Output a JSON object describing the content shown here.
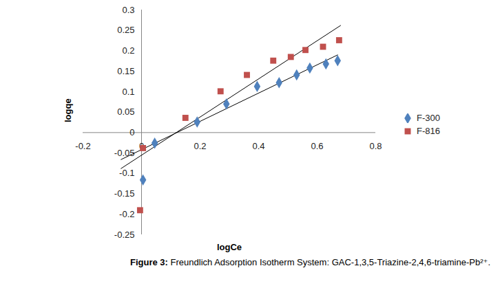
{
  "chart_data": {
    "type": "scatter",
    "title": "Figure 3: Freundlich Adsorption Isotherm System: GAC-1,3,5-Triazine-2,4,6-triamine-Pb²⁺.",
    "x_label": "logCe",
    "y_label": "logqe",
    "xlim": [
      -0.2,
      0.8
    ],
    "xticks": [
      -0.2,
      0,
      0.2,
      0.4,
      0.6,
      0.8
    ],
    "ylim": [
      -0.25,
      0.3
    ],
    "yticks": [
      -0.25,
      -0.2,
      -0.15,
      -0.1,
      -0.05,
      0,
      0.05,
      0.1,
      0.15,
      0.2,
      0.25,
      0.3
    ],
    "grid": false,
    "legend": "right",
    "series": [
      {
        "name": "F-300",
        "color": "#4F81BD",
        "marker": "diamond",
        "x": [
          0.005,
          0.045,
          0.19,
          0.29,
          0.395,
          0.47,
          0.53,
          0.575,
          0.63,
          0.67
        ],
        "values": [
          -0.116,
          -0.026,
          0.026,
          0.07,
          0.113,
          0.122,
          0.141,
          0.158,
          0.168,
          0.176
        ],
        "trendline": {
          "x": [
            -0.07,
            0.67
          ],
          "values": [
            -0.066,
            0.19
          ]
        }
      },
      {
        "name": "F-816",
        "color": "#C0504D",
        "marker": "square",
        "x": [
          -0.005,
          0.005,
          0.15,
          0.27,
          0.36,
          0.45,
          0.51,
          0.56,
          0.62,
          0.675
        ],
        "values": [
          -0.19,
          -0.038,
          0.036,
          0.101,
          0.141,
          0.176,
          0.185,
          0.202,
          0.21,
          0.226
        ],
        "trendline": {
          "x": [
            -0.07,
            0.68
          ],
          "values": [
            -0.088,
            0.262
          ]
        }
      }
    ]
  }
}
